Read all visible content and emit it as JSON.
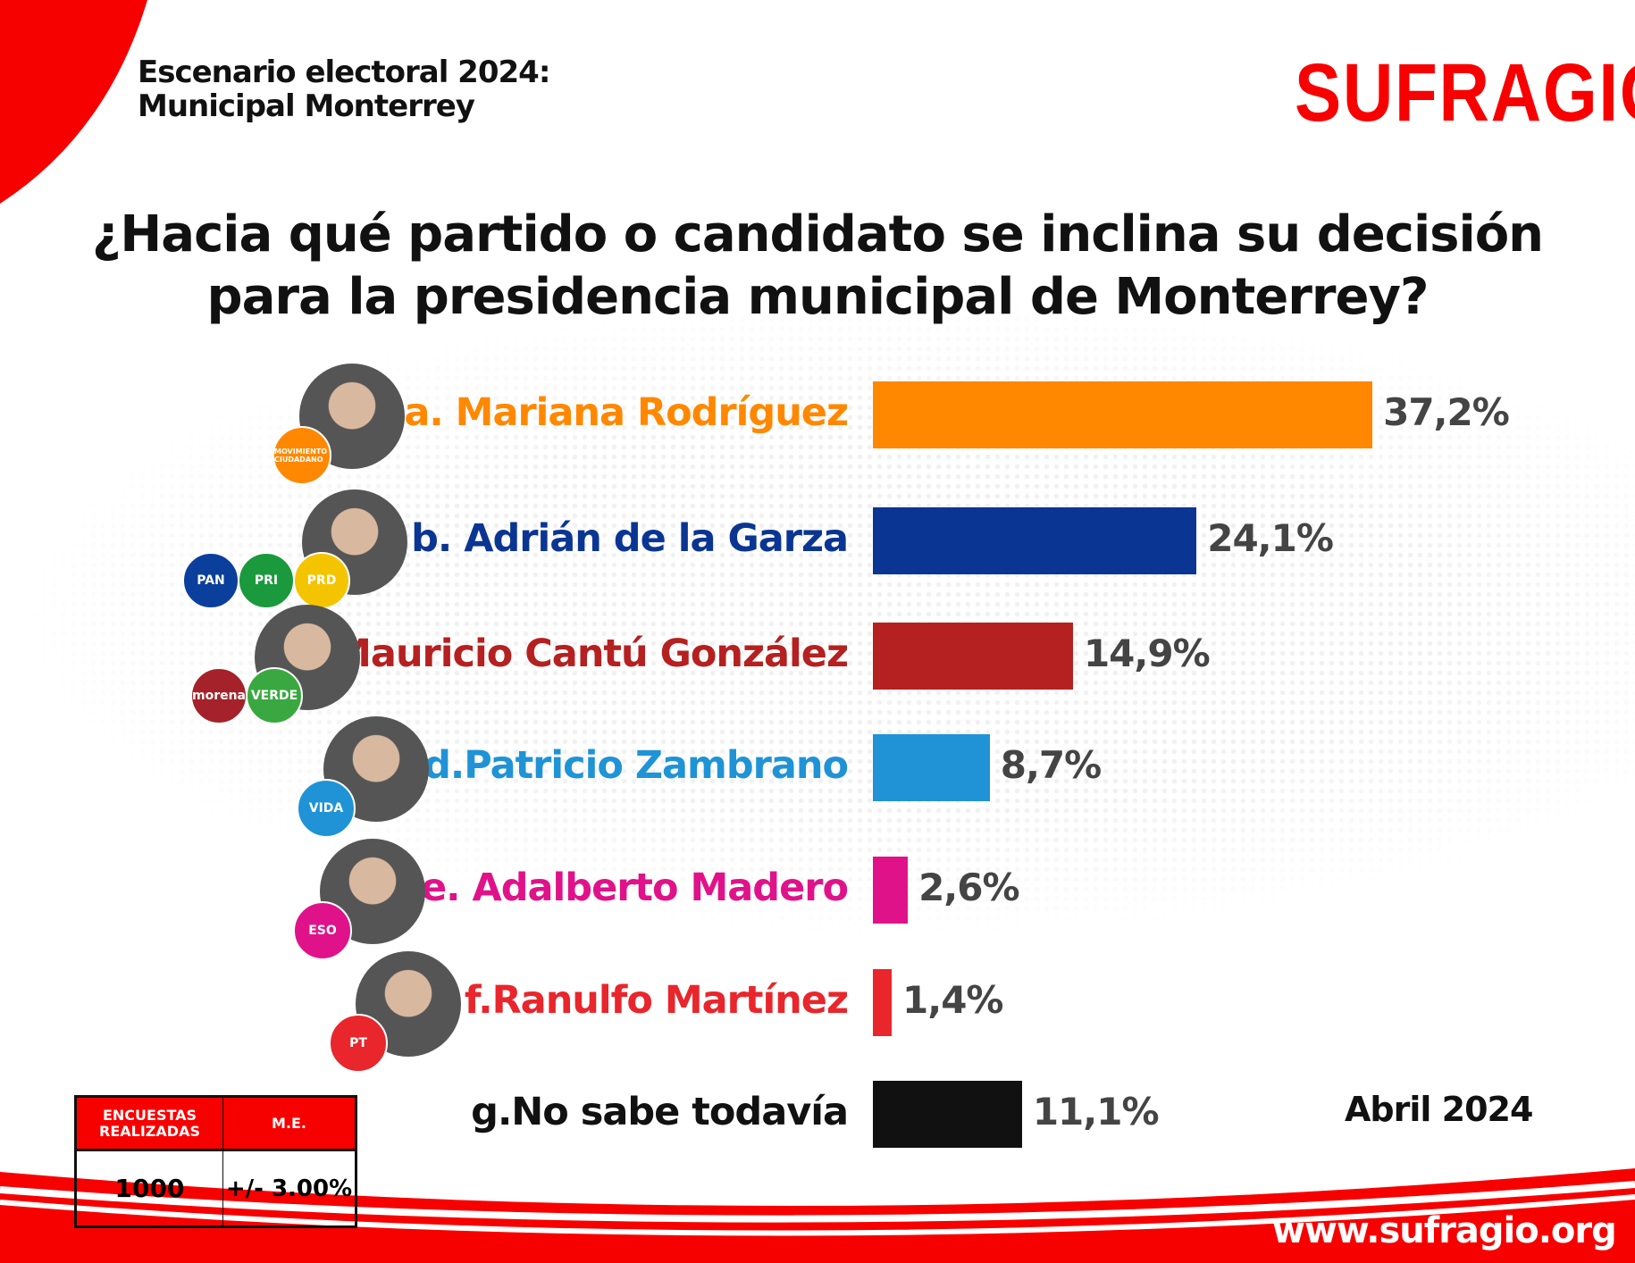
{
  "header": {
    "line1": "Escenario electoral 2024:",
    "line2": "Municipal Monterrey"
  },
  "logo": "SUFRAGIO",
  "question": {
    "line1": "¿Hacia qué partido o candidato se inclina su decisión",
    "line2": "para la presidencia municipal de Monterrey?"
  },
  "chart_data": {
    "type": "bar",
    "orientation": "horizontal",
    "categories": [
      "a. Mariana Rodríguez",
      "b. Adrián de la Garza",
      "c.Mauricio Cantú González",
      "d.Patricio Zambrano",
      "e. Adalberto Madero",
      "f.Ranulfo Martínez",
      "g.No sabe todavía"
    ],
    "values": [
      37.2,
      24.1,
      14.9,
      8.7,
      2.6,
      1.4,
      11.1
    ],
    "value_labels": [
      "37,2%",
      "24,1%",
      "14,9%",
      "8,7%",
      "2,6%",
      "1,4%",
      "11,1%"
    ],
    "colors": [
      "#ff8800",
      "#0a3592",
      "#b52020",
      "#1f93d6",
      "#e0128a",
      "#e8262b",
      "#111111"
    ],
    "parties": [
      [
        "MOVIMIENTO CIUDADANO"
      ],
      [
        "PAN",
        "PRI",
        "PRD"
      ],
      [
        "morena",
        "VERDE"
      ],
      [
        "VIDA"
      ],
      [
        "ESO"
      ],
      [
        "PT"
      ],
      []
    ],
    "party_colors": [
      [
        "#ff8800"
      ],
      [
        "#0b3f9c",
        "#1a9a3c",
        "#f5c400"
      ],
      [
        "#a5222a",
        "#3aa840"
      ],
      [
        "#1f93d6"
      ],
      [
        "#e0128a"
      ],
      [
        "#e8262b"
      ],
      []
    ]
  },
  "date": "Abril 2024",
  "survey_table": {
    "headers": [
      "ENCUESTAS REALIZADAS",
      "M.E."
    ],
    "values": [
      "1000",
      "+/- 3.00%"
    ]
  },
  "website": "www.sufragio.org",
  "brand_color": "#f70000"
}
